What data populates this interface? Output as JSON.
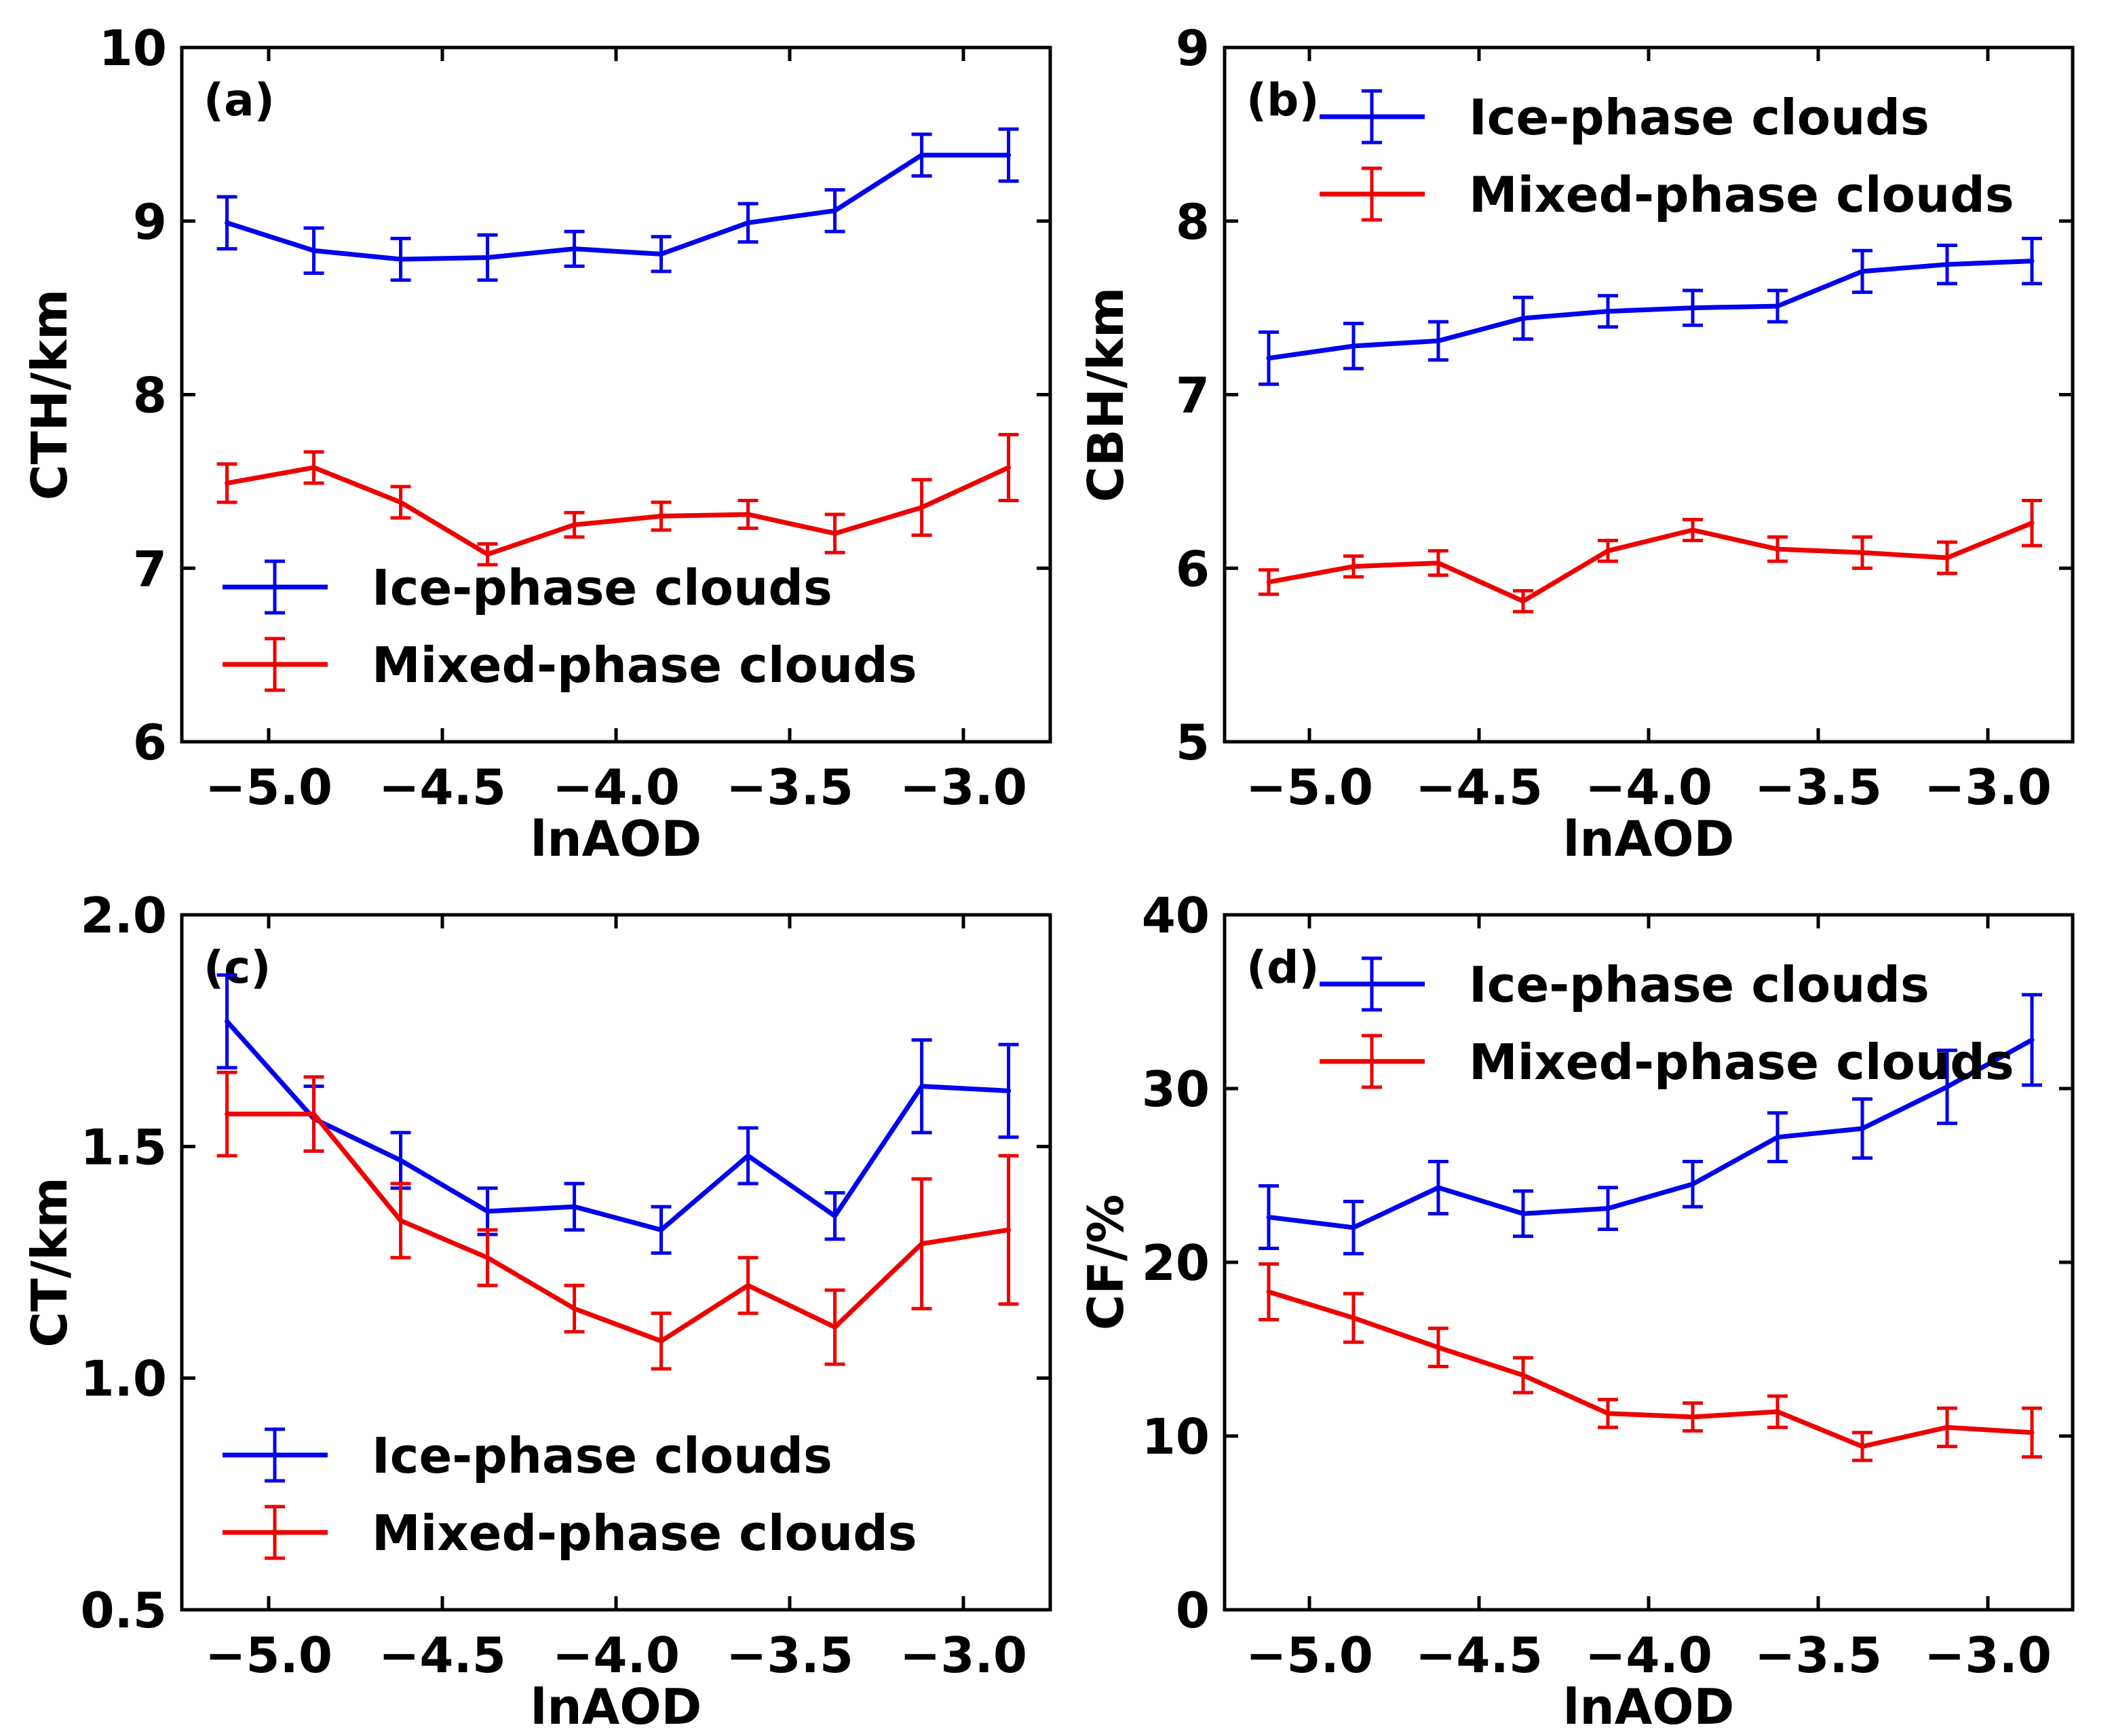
{
  "chart_data": [
    {
      "type": "line",
      "panel_label": "(a)",
      "xlabel": "lnAOD",
      "ylabel": "CTH/km",
      "xlim": [
        -5.25,
        -2.75
      ],
      "ylim": [
        6,
        10
      ],
      "xticks": [
        -5.0,
        -4.5,
        -4.0,
        -3.5,
        -3.0
      ],
      "xtick_labels": [
        "−5.0",
        "−4.5",
        "−4.0",
        "−3.5",
        "−3.0"
      ],
      "yticks": [
        6,
        7,
        8,
        9,
        10
      ],
      "ytick_labels": [
        "6",
        "7",
        "8",
        "9",
        "10"
      ],
      "legend_position": "lower-left",
      "x": [
        -5.12,
        -4.87,
        -4.62,
        -4.37,
        -4.12,
        -3.87,
        -3.62,
        -3.37,
        -3.12,
        -2.87
      ],
      "series": [
        {
          "name": "Ice-phase clouds",
          "color": "#0000ee",
          "values": [
            8.99,
            8.83,
            8.78,
            8.79,
            8.84,
            8.81,
            8.99,
            9.06,
            9.38,
            9.38
          ],
          "errors": [
            0.15,
            0.13,
            0.12,
            0.13,
            0.1,
            0.1,
            0.11,
            0.12,
            0.12,
            0.15
          ]
        },
        {
          "name": "Mixed-phase clouds",
          "color": "#ee0000",
          "values": [
            7.49,
            7.58,
            7.38,
            7.08,
            7.25,
            7.3,
            7.31,
            7.2,
            7.35,
            7.58
          ],
          "errors": [
            0.11,
            0.09,
            0.09,
            0.06,
            0.07,
            0.08,
            0.08,
            0.11,
            0.16,
            0.19
          ]
        }
      ]
    },
    {
      "type": "line",
      "panel_label": "(b)",
      "xlabel": "lnAOD",
      "ylabel": "CBH/km",
      "xlim": [
        -5.25,
        -2.75
      ],
      "ylim": [
        5,
        9
      ],
      "xticks": [
        -5.0,
        -4.5,
        -4.0,
        -3.5,
        -3.0
      ],
      "xtick_labels": [
        "−5.0",
        "−4.5",
        "−4.0",
        "−3.5",
        "−3.0"
      ],
      "yticks": [
        5,
        6,
        7,
        8,
        9
      ],
      "ytick_labels": [
        "5",
        "6",
        "7",
        "8",
        "9"
      ],
      "legend_position": "top-right",
      "x": [
        -5.12,
        -4.87,
        -4.62,
        -4.37,
        -4.12,
        -3.87,
        -3.62,
        -3.37,
        -3.12,
        -2.87
      ],
      "series": [
        {
          "name": "Ice-phase clouds",
          "color": "#0000ee",
          "values": [
            7.21,
            7.28,
            7.31,
            7.44,
            7.48,
            7.5,
            7.51,
            7.71,
            7.75,
            7.77
          ],
          "errors": [
            0.15,
            0.13,
            0.11,
            0.12,
            0.09,
            0.1,
            0.09,
            0.12,
            0.11,
            0.13
          ]
        },
        {
          "name": "Mixed-phase clouds",
          "color": "#ee0000",
          "values": [
            5.92,
            6.01,
            6.03,
            5.81,
            6.1,
            6.22,
            6.11,
            6.09,
            6.06,
            6.26
          ],
          "errors": [
            0.07,
            0.06,
            0.07,
            0.06,
            0.06,
            0.06,
            0.07,
            0.09,
            0.09,
            0.13
          ]
        }
      ]
    },
    {
      "type": "line",
      "panel_label": "(c)",
      "xlabel": "lnAOD",
      "ylabel": "CT/km",
      "xlim": [
        -5.25,
        -2.75
      ],
      "ylim": [
        0.5,
        2.0
      ],
      "xticks": [
        -5.0,
        -4.5,
        -4.0,
        -3.5,
        -3.0
      ],
      "xtick_labels": [
        "−5.0",
        "−4.5",
        "−4.0",
        "−3.5",
        "−3.0"
      ],
      "yticks": [
        0.5,
        1.0,
        1.5,
        2.0
      ],
      "ytick_labels": [
        "0.5",
        "1.0",
        "1.5",
        "2.0"
      ],
      "legend_position": "lower-left",
      "x": [
        -5.12,
        -4.87,
        -4.62,
        -4.37,
        -4.12,
        -3.87,
        -3.62,
        -3.37,
        -3.12,
        -2.87
      ],
      "series": [
        {
          "name": "Ice-phase clouds",
          "color": "#0000ee",
          "values": [
            1.77,
            1.56,
            1.47,
            1.36,
            1.37,
            1.32,
            1.48,
            1.35,
            1.63,
            1.62
          ],
          "errors": [
            0.1,
            0.07,
            0.06,
            0.05,
            0.05,
            0.05,
            0.06,
            0.05,
            0.1,
            0.1
          ]
        },
        {
          "name": "Mixed-phase clouds",
          "color": "#ee0000",
          "values": [
            1.57,
            1.57,
            1.34,
            1.26,
            1.15,
            1.08,
            1.2,
            1.11,
            1.29,
            1.32
          ],
          "errors": [
            0.09,
            0.08,
            0.08,
            0.06,
            0.05,
            0.06,
            0.06,
            0.08,
            0.14,
            0.16
          ]
        }
      ]
    },
    {
      "type": "line",
      "panel_label": "(d)",
      "xlabel": "lnAOD",
      "ylabel": "CF/%",
      "xlim": [
        -5.25,
        -2.75
      ],
      "ylim": [
        0,
        40
      ],
      "xticks": [
        -5.0,
        -4.5,
        -4.0,
        -3.5,
        -3.0
      ],
      "xtick_labels": [
        "−5.0",
        "−4.5",
        "−4.0",
        "−3.5",
        "−3.0"
      ],
      "yticks": [
        0,
        10,
        20,
        30,
        40
      ],
      "ytick_labels": [
        "0",
        "10",
        "20",
        "30",
        "40"
      ],
      "legend_position": "top-right",
      "x": [
        -5.12,
        -4.87,
        -4.62,
        -4.37,
        -4.12,
        -3.87,
        -3.62,
        -3.37,
        -3.12,
        -2.87
      ],
      "series": [
        {
          "name": "Ice-phase clouds",
          "color": "#0000ee",
          "values": [
            22.6,
            22.0,
            24.3,
            22.8,
            23.1,
            24.5,
            27.2,
            27.7,
            30.1,
            32.8
          ],
          "errors": [
            1.8,
            1.5,
            1.5,
            1.3,
            1.2,
            1.3,
            1.4,
            1.7,
            2.1,
            2.6
          ]
        },
        {
          "name": "Mixed-phase clouds",
          "color": "#ee0000",
          "values": [
            18.3,
            16.8,
            15.1,
            13.5,
            11.3,
            11.1,
            11.4,
            9.4,
            10.5,
            10.2
          ],
          "errors": [
            1.6,
            1.4,
            1.1,
            1.0,
            0.8,
            0.8,
            0.9,
            0.8,
            1.1,
            1.4
          ]
        }
      ]
    }
  ]
}
